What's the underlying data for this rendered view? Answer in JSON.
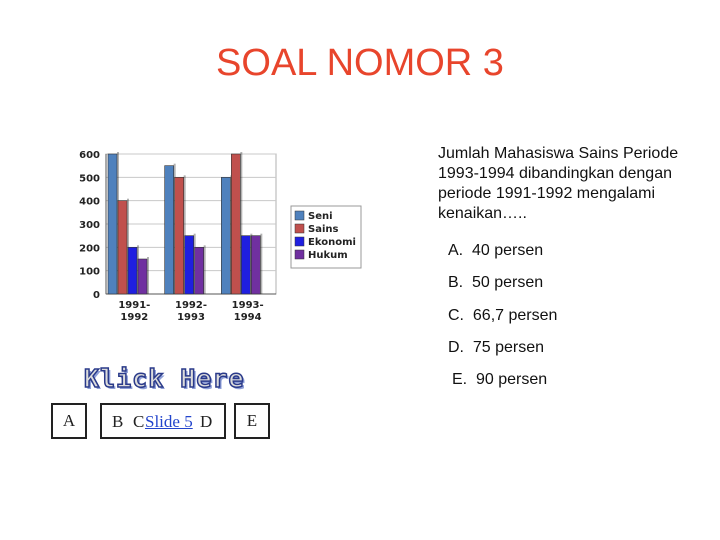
{
  "slide": {
    "title": "SOAL NOMOR 3",
    "question": "Jumlah Mahasiswa Sains Periode 1993-1994 dibandingkan dengan periode 1991-1992 mengalami kenaikan…..",
    "options": [
      {
        "letter": "A.",
        "text": "40 persen"
      },
      {
        "letter": "B.",
        "text": "50 persen"
      },
      {
        "letter": "C.",
        "text": "66,7 persen"
      },
      {
        "letter": "D.",
        "text": "75 persen"
      },
      {
        "letter": "E.",
        "text": "90 persen"
      }
    ],
    "klick_label": "Klick  Here",
    "nav": {
      "a": "A",
      "b": "B",
      "c": "C",
      "link": "Slide 5",
      "d": "D",
      "e": "E"
    }
  },
  "chart_data": {
    "type": "bar",
    "categories": [
      [
        "1991-",
        "1992"
      ],
      [
        "1992-",
        "1993"
      ],
      [
        "1993-",
        "1994"
      ]
    ],
    "series": [
      {
        "name": "Seni",
        "values": [
          600,
          550,
          500
        ],
        "color": "#4f81bd"
      },
      {
        "name": "Sains",
        "values": [
          400,
          500,
          600
        ],
        "color": "#c0504d"
      },
      {
        "name": "Ekonomi",
        "values": [
          200,
          250,
          250
        ],
        "color": "#1f1fe0"
      },
      {
        "name": "Hukum",
        "values": [
          150,
          200,
          250
        ],
        "color": "#7030a0"
      }
    ],
    "yticks": [
      0,
      100,
      200,
      300,
      400,
      500,
      600
    ],
    "ylim": [
      0,
      600
    ],
    "legend": "right",
    "grid": true
  }
}
